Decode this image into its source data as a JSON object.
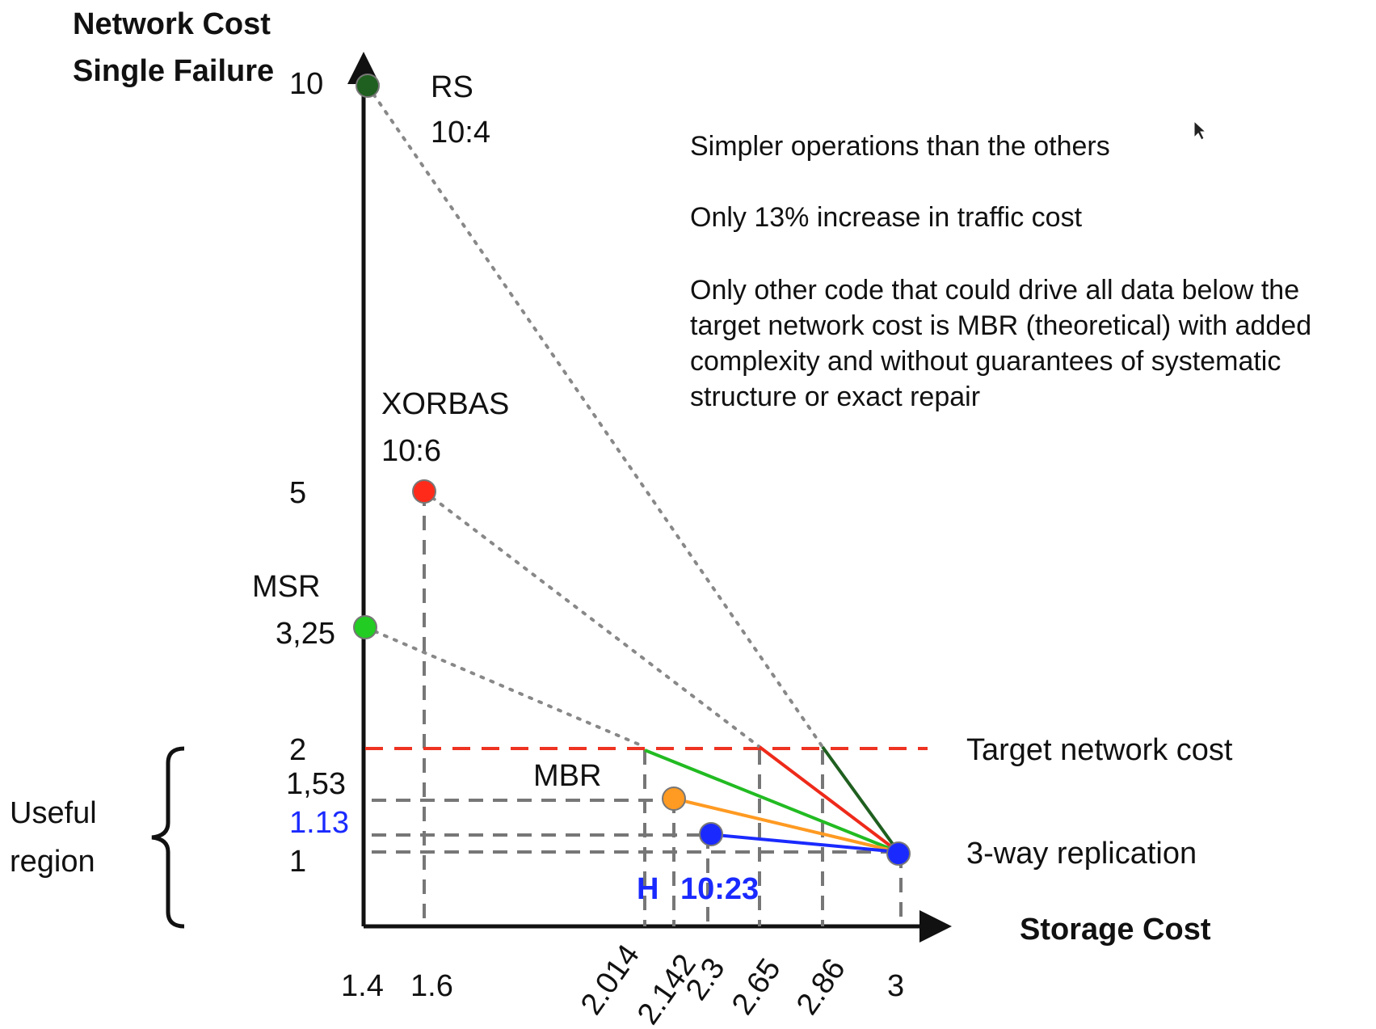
{
  "chart_data": {
    "type": "scatter",
    "y_title_line1": "Network Cost",
    "y_title_line2": "Single Failure",
    "x_title": "Storage Cost",
    "x_ticks": [
      "1.4",
      "1.6",
      "2.014",
      "2.142",
      "2.3",
      "2.65",
      "2.86",
      "3"
    ],
    "y_ticks": [
      "10",
      "5",
      "2",
      "1,53",
      "1.13",
      "1"
    ],
    "points": [
      {
        "name_line1": "RS",
        "name_line2": "10:4",
        "x": 1.4,
        "y": 10,
        "color": "#1f5f1f"
      },
      {
        "name_line1": "XORBAS",
        "name_line2": "10:6",
        "x": 1.6,
        "y": 5,
        "color": "#ff2a1a"
      },
      {
        "name_line1": "MSR",
        "name_line2": "3,25",
        "x": 1.4,
        "y": 3.25,
        "color": "#22cc22"
      },
      {
        "name_line1": "MBR",
        "name_line2": "",
        "x": 2.142,
        "y": 1.53,
        "color": "#ff9a22"
      },
      {
        "name_line1": "H",
        "name_line2": "10:23",
        "x": 2.3,
        "y": 1.13,
        "color": "#1a2aff"
      },
      {
        "name_line1": "3-way replication",
        "name_line2": "",
        "x": 3,
        "y": 1,
        "color": "#1a2aff"
      }
    ],
    "threshold": {
      "label": "Target network cost",
      "y": 2,
      "color": "#ee3322"
    },
    "region_label_line1": "Useful",
    "region_label_line2": "region",
    "notes": [
      "Simpler operations than the others",
      "Only 13% increase in traffic cost",
      "Only other code that could drive all data below the",
      "target network cost is MBR (theoretical) with added",
      "complexity and without guarantees of systematic",
      "structure or exact repair"
    ],
    "colors": {
      "rs_line": "#1f5f1f",
      "xorbas_line": "#ee2a1a",
      "msr_line": "#22bb22",
      "mbr_line": "#ff9a22",
      "h_line": "#1a2aff",
      "guide": "#777777",
      "dotted": "#888888",
      "h_label": "#1a2aff"
    }
  }
}
